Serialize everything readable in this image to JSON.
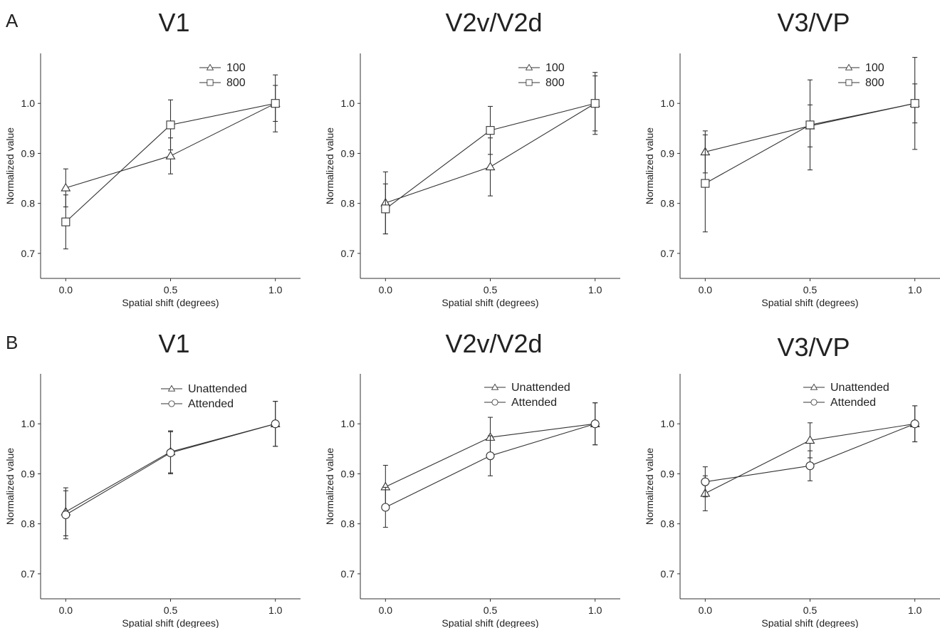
{
  "panel_labels": [
    "A",
    "B"
  ],
  "chart_data": [
    {
      "type": "line",
      "title": "V1",
      "xlabel": "Spatial shift (degrees)",
      "ylabel": "Normalized value",
      "x": [
        0.0,
        0.5,
        1.0
      ],
      "x_tick_labels": [
        "0.0",
        "0.5",
        "1.0"
      ],
      "y_ticks": [
        0.7,
        0.8,
        0.9,
        1.0
      ],
      "y_tick_labels": [
        "0.7",
        "0.8",
        "0.9",
        "1.0"
      ],
      "xlim": [
        -0.12,
        1.12
      ],
      "ylim": [
        0.65,
        1.1
      ],
      "legend_position": "top-right",
      "series": [
        {
          "name": "100",
          "marker": "triangle",
          "values": [
            0.831,
            0.895,
            1.0
          ],
          "errors": [
            0.038,
            0.036,
            0.057
          ]
        },
        {
          "name": "800",
          "marker": "square",
          "values": [
            0.763,
            0.957,
            1.0
          ],
          "errors": [
            0.054,
            0.05,
            0.036
          ]
        }
      ]
    },
    {
      "type": "line",
      "title": "V2v/V2d",
      "xlabel": "Spatial shift (degrees)",
      "ylabel": "Normalized value",
      "x": [
        0.0,
        0.5,
        1.0
      ],
      "x_tick_labels": [
        "0.0",
        "0.5",
        "1.0"
      ],
      "y_ticks": [
        0.7,
        0.8,
        0.9,
        1.0
      ],
      "y_tick_labels": [
        "0.7",
        "0.8",
        "0.9",
        "1.0"
      ],
      "xlim": [
        -0.12,
        1.12
      ],
      "ylim": [
        0.65,
        1.1
      ],
      "legend_position": "top-right",
      "series": [
        {
          "name": "100",
          "marker": "triangle",
          "values": [
            0.801,
            0.873,
            1.0
          ],
          "errors": [
            0.062,
            0.058,
            0.062
          ]
        },
        {
          "name": "800",
          "marker": "square",
          "values": [
            0.789,
            0.946,
            1.0
          ],
          "errors": [
            0.05,
            0.048,
            0.055
          ]
        }
      ]
    },
    {
      "type": "line",
      "title": "V3/VP",
      "xlabel": "Spatial shift (degrees)",
      "ylabel": "Normalized value",
      "x": [
        0.0,
        0.5,
        1.0
      ],
      "x_tick_labels": [
        "0.0",
        "0.5",
        "1.0"
      ],
      "y_ticks": [
        0.7,
        0.8,
        0.9,
        1.0
      ],
      "y_tick_labels": [
        "0.7",
        "0.8",
        "0.9",
        "1.0"
      ],
      "xlim": [
        -0.12,
        1.12
      ],
      "ylim": [
        0.65,
        1.1
      ],
      "legend_position": "top-right",
      "series": [
        {
          "name": "100",
          "marker": "triangle",
          "values": [
            0.903,
            0.955,
            1.0
          ],
          "errors": [
            0.042,
            0.042,
            0.092
          ]
        },
        {
          "name": "800",
          "marker": "square",
          "values": [
            0.84,
            0.957,
            1.0
          ],
          "errors": [
            0.097,
            0.09,
            0.039
          ]
        }
      ]
    },
    {
      "type": "line",
      "title": "V1",
      "xlabel": "Spatial shift (degrees)",
      "ylabel": "Normalized value",
      "x": [
        0.0,
        0.5,
        1.0
      ],
      "x_tick_labels": [
        "0.0",
        "0.5",
        "1.0"
      ],
      "y_ticks": [
        0.7,
        0.8,
        0.9,
        1.0
      ],
      "y_tick_labels": [
        "0.7",
        "0.8",
        "0.9",
        "1.0"
      ],
      "xlim": [
        -0.12,
        1.12
      ],
      "ylim": [
        0.65,
        1.1
      ],
      "legend_position": "top-right",
      "series": [
        {
          "name": "Unattended",
          "marker": "triangle",
          "values": [
            0.824,
            0.944,
            1.0
          ],
          "errors": [
            0.048,
            0.042,
            0.045
          ]
        },
        {
          "name": "Attended",
          "marker": "circle",
          "values": [
            0.818,
            0.942,
            1.0
          ],
          "errors": [
            0.048,
            0.042,
            0.045
          ]
        }
      ]
    },
    {
      "type": "line",
      "title": "V2v/V2d",
      "xlabel": "Spatial shift (degrees)",
      "ylabel": "Normalized value",
      "x": [
        0.0,
        0.5,
        1.0
      ],
      "x_tick_labels": [
        "0.0",
        "0.5",
        "1.0"
      ],
      "y_ticks": [
        0.7,
        0.8,
        0.9,
        1.0
      ],
      "y_tick_labels": [
        "0.7",
        "0.8",
        "0.9",
        "1.0"
      ],
      "xlim": [
        -0.12,
        1.12
      ],
      "ylim": [
        0.65,
        1.1
      ],
      "legend_position": "top-right",
      "series": [
        {
          "name": "Unattended",
          "marker": "triangle",
          "values": [
            0.874,
            0.973,
            1.0
          ],
          "errors": [
            0.043,
            0.04,
            0.042
          ]
        },
        {
          "name": "Attended",
          "marker": "circle",
          "values": [
            0.833,
            0.936,
            1.0
          ],
          "errors": [
            0.04,
            0.04,
            0.042
          ]
        }
      ]
    },
    {
      "type": "line",
      "title": "V3/VP",
      "xlabel": "Spatial shift (degrees)",
      "ylabel": "Normalized value",
      "x": [
        0.0,
        0.5,
        1.0
      ],
      "x_tick_labels": [
        "0.0",
        "0.5",
        "1.0"
      ],
      "y_ticks": [
        0.7,
        0.8,
        0.9,
        1.0
      ],
      "y_tick_labels": [
        "0.7",
        "0.8",
        "0.9",
        "1.0"
      ],
      "xlim": [
        -0.12,
        1.12
      ],
      "ylim": [
        0.65,
        1.1
      ],
      "legend_position": "top-right",
      "series": [
        {
          "name": "Unattended",
          "marker": "triangle",
          "values": [
            0.861,
            0.967,
            1.0
          ],
          "errors": [
            0.035,
            0.035,
            0.036
          ]
        },
        {
          "name": "Attended",
          "marker": "circle",
          "values": [
            0.884,
            0.916,
            1.0
          ],
          "errors": [
            0.03,
            0.03,
            0.036
          ]
        }
      ]
    }
  ]
}
